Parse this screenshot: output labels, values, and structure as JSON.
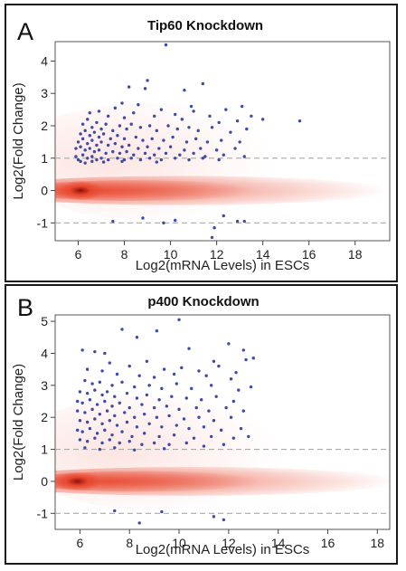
{
  "chart_data": [
    {
      "type": "scatter",
      "panel_label": "A",
      "title": "Tip60 Knockdown",
      "xlabel": "Log2(mRNA Levels) in ESCs",
      "ylabel": "Log2(Fold Change)",
      "xlim": [
        5,
        19.5
      ],
      "ylim": [
        -1.55,
        4.6
      ],
      "xticks": [
        6,
        8,
        10,
        12,
        14,
        16,
        18
      ],
      "yticks": [
        -1,
        0,
        1,
        2,
        3,
        4
      ],
      "reference_lines": [
        1,
        -1
      ],
      "colors": {
        "points": "#3d4aa8",
        "density": "#e8452c",
        "density_core": "#8b0f0a",
        "reference_line": "#aaaaaa"
      },
      "density": {
        "description": "bulk of genes near fold change 0, densest around x = 6.1"
      },
      "points": [
        [
          9.8,
          4.5
        ],
        [
          9.0,
          3.4
        ],
        [
          8.2,
          3.2
        ],
        [
          10.6,
          3.1
        ],
        [
          11.4,
          3.3
        ],
        [
          8.9,
          3.15
        ],
        [
          7.9,
          2.7
        ],
        [
          8.6,
          2.65
        ],
        [
          10.9,
          2.6
        ],
        [
          13.1,
          2.6
        ],
        [
          12.4,
          2.5
        ],
        [
          13.5,
          2.3
        ],
        [
          14.0,
          2.2
        ],
        [
          15.6,
          2.15
        ],
        [
          6.5,
          2.4
        ],
        [
          6.9,
          2.45
        ],
        [
          7.3,
          2.3
        ],
        [
          7.6,
          2.55
        ],
        [
          8.0,
          2.25
        ],
        [
          8.4,
          2.4
        ],
        [
          9.3,
          2.3
        ],
        [
          9.6,
          2.5
        ],
        [
          10.2,
          2.35
        ],
        [
          10.5,
          2.2
        ],
        [
          11.0,
          2.45
        ],
        [
          11.7,
          2.3
        ],
        [
          12.1,
          2.1
        ],
        [
          12.9,
          2.15
        ],
        [
          6.2,
          2.05
        ],
        [
          6.4,
          2.2
        ],
        [
          6.6,
          1.95
        ],
        [
          6.8,
          2.1
        ],
        [
          7.0,
          1.9
        ],
        [
          7.2,
          2.05
        ],
        [
          7.5,
          1.85
        ],
        [
          7.8,
          2.0
        ],
        [
          8.1,
          1.9
        ],
        [
          8.3,
          2.05
        ],
        [
          8.7,
          1.95
        ],
        [
          9.1,
          2.0
        ],
        [
          9.4,
          1.85
        ],
        [
          9.9,
          2.0
        ],
        [
          10.3,
          1.9
        ],
        [
          10.8,
          1.95
        ],
        [
          11.2,
          1.85
        ],
        [
          11.8,
          1.95
        ],
        [
          12.6,
          1.8
        ],
        [
          13.3,
          1.9
        ],
        [
          6.1,
          1.75
        ],
        [
          6.3,
          1.85
        ],
        [
          6.5,
          1.7
        ],
        [
          6.7,
          1.8
        ],
        [
          6.9,
          1.65
        ],
        [
          7.1,
          1.75
        ],
        [
          7.4,
          1.6
        ],
        [
          7.7,
          1.7
        ],
        [
          8.0,
          1.6
        ],
        [
          8.5,
          1.65
        ],
        [
          8.8,
          1.55
        ],
        [
          9.2,
          1.6
        ],
        [
          9.7,
          1.55
        ],
        [
          10.1,
          1.65
        ],
        [
          10.7,
          1.5
        ],
        [
          11.1,
          1.6
        ],
        [
          11.6,
          1.5
        ],
        [
          12.2,
          1.55
        ],
        [
          13.0,
          1.5
        ],
        [
          6.0,
          1.5
        ],
        [
          6.2,
          1.6
        ],
        [
          6.4,
          1.45
        ],
        [
          6.6,
          1.55
        ],
        [
          6.8,
          1.4
        ],
        [
          7.0,
          1.5
        ],
        [
          7.3,
          1.4
        ],
        [
          7.6,
          1.45
        ],
        [
          7.9,
          1.35
        ],
        [
          8.2,
          1.4
        ],
        [
          8.6,
          1.3
        ],
        [
          9.0,
          1.35
        ],
        [
          9.5,
          1.3
        ],
        [
          10.0,
          1.35
        ],
        [
          10.6,
          1.25
        ],
        [
          11.3,
          1.3
        ],
        [
          12.0,
          1.25
        ],
        [
          12.8,
          1.3
        ],
        [
          5.9,
          1.3
        ],
        [
          6.1,
          1.35
        ],
        [
          6.3,
          1.25
        ],
        [
          6.5,
          1.3
        ],
        [
          6.7,
          1.2
        ],
        [
          6.9,
          1.25
        ],
        [
          7.2,
          1.15
        ],
        [
          7.5,
          1.2
        ],
        [
          7.8,
          1.15
        ],
        [
          8.1,
          1.2
        ],
        [
          8.4,
          1.1
        ],
        [
          8.9,
          1.15
        ],
        [
          9.3,
          1.1
        ],
        [
          9.8,
          1.15
        ],
        [
          10.4,
          1.1
        ],
        [
          11.0,
          1.15
        ],
        [
          11.5,
          1.05
        ],
        [
          12.3,
          1.1
        ],
        [
          13.2,
          1.05
        ],
        [
          5.9,
          1.05
        ],
        [
          6.0,
          0.95
        ],
        [
          6.2,
          1.1
        ],
        [
          6.4,
          1.0
        ],
        [
          6.6,
          1.05
        ],
        [
          6.8,
          0.95
        ],
        [
          7.0,
          1.0
        ],
        [
          7.3,
          0.95
        ],
        [
          7.7,
          1.0
        ],
        [
          8.0,
          0.95
        ],
        [
          8.3,
          1.0
        ],
        [
          8.7,
          0.95
        ],
        [
          9.1,
          1.0
        ],
        [
          9.6,
          0.95
        ],
        [
          10.2,
          1.0
        ],
        [
          10.8,
          0.95
        ],
        [
          11.4,
          1.0
        ],
        [
          12.1,
          0.95
        ],
        [
          6.1,
          0.9
        ],
        [
          6.3,
          0.85
        ],
        [
          6.6,
          0.9
        ],
        [
          7.1,
          0.88
        ],
        [
          7.9,
          0.9
        ],
        [
          9.4,
          0.88
        ],
        [
          12.3,
          -0.78
        ],
        [
          11.9,
          -1.15
        ],
        [
          13.2,
          -0.95
        ],
        [
          7.5,
          -0.95
        ],
        [
          8.8,
          -0.85
        ],
        [
          10.2,
          -0.92
        ],
        [
          9.7,
          -1.0
        ],
        [
          12.9,
          -0.95
        ],
        [
          11.8,
          -1.45
        ]
      ]
    },
    {
      "type": "scatter",
      "panel_label": "B",
      "title": "p400 Knockdown",
      "xlabel": "Log2(mRNA Levels) in ESCs",
      "ylabel": "Log2(Fold Change)",
      "xlim": [
        5,
        18.5
      ],
      "ylim": [
        -1.5,
        5.2
      ],
      "xticks": [
        6,
        8,
        10,
        12,
        14,
        16,
        18
      ],
      "yticks": [
        -1,
        0,
        1,
        2,
        3,
        4,
        5
      ],
      "reference_lines": [
        1,
        -1
      ],
      "colors": {
        "points": "#3d4aa8",
        "density": "#e8452c",
        "density_core": "#8b0f0a",
        "reference_line": "#aaaaaa"
      },
      "density": {
        "description": "bulk of genes near fold change 0, densest around x = 5.9"
      },
      "points": [
        [
          10.0,
          5.05
        ],
        [
          7.7,
          4.75
        ],
        [
          9.1,
          4.7
        ],
        [
          8.3,
          4.5
        ],
        [
          6.6,
          4.05
        ],
        [
          6.1,
          4.1
        ],
        [
          7.0,
          4.0
        ],
        [
          10.4,
          4.15
        ],
        [
          12.0,
          4.3
        ],
        [
          12.6,
          4.1
        ],
        [
          13.0,
          3.85
        ],
        [
          12.7,
          3.8
        ],
        [
          11.4,
          3.75
        ],
        [
          7.2,
          3.7
        ],
        [
          8.0,
          3.6
        ],
        [
          8.7,
          3.75
        ],
        [
          9.4,
          3.5
        ],
        [
          10.1,
          3.55
        ],
        [
          10.8,
          3.45
        ],
        [
          11.6,
          3.6
        ],
        [
          12.3,
          3.4
        ],
        [
          6.3,
          3.5
        ],
        [
          6.9,
          3.45
        ],
        [
          7.5,
          3.35
        ],
        [
          8.4,
          3.3
        ],
        [
          9.0,
          3.25
        ],
        [
          9.8,
          3.35
        ],
        [
          11.1,
          3.3
        ],
        [
          12.1,
          3.2
        ],
        [
          6.2,
          3.15
        ],
        [
          6.5,
          3.05
        ],
        [
          6.8,
          3.1
        ],
        [
          7.3,
          3.0
        ],
        [
          7.7,
          3.1
        ],
        [
          8.2,
          2.95
        ],
        [
          8.8,
          3.0
        ],
        [
          9.3,
          2.9
        ],
        [
          9.9,
          3.05
        ],
        [
          10.5,
          2.9
        ],
        [
          11.3,
          3.0
        ],
        [
          12.4,
          2.85
        ],
        [
          12.9,
          2.95
        ],
        [
          6.0,
          2.8
        ],
        [
          6.3,
          2.75
        ],
        [
          6.6,
          2.85
        ],
        [
          6.9,
          2.7
        ],
        [
          7.1,
          2.8
        ],
        [
          7.4,
          2.65
        ],
        [
          7.9,
          2.75
        ],
        [
          8.3,
          2.6
        ],
        [
          8.7,
          2.7
        ],
        [
          9.2,
          2.55
        ],
        [
          9.7,
          2.65
        ],
        [
          10.3,
          2.6
        ],
        [
          10.9,
          2.55
        ],
        [
          11.5,
          2.65
        ],
        [
          12.2,
          2.5
        ],
        [
          5.9,
          2.5
        ],
        [
          6.1,
          2.45
        ],
        [
          6.4,
          2.55
        ],
        [
          6.7,
          2.4
        ],
        [
          7.0,
          2.5
        ],
        [
          7.3,
          2.35
        ],
        [
          7.6,
          2.45
        ],
        [
          8.0,
          2.3
        ],
        [
          8.5,
          2.4
        ],
        [
          9.0,
          2.3
        ],
        [
          9.5,
          2.35
        ],
        [
          10.0,
          2.25
        ],
        [
          10.7,
          2.3
        ],
        [
          11.2,
          2.2
        ],
        [
          11.9,
          2.3
        ],
        [
          12.6,
          2.2
        ],
        [
          5.9,
          2.2
        ],
        [
          6.2,
          2.15
        ],
        [
          6.5,
          2.25
        ],
        [
          6.8,
          2.1
        ],
        [
          7.1,
          2.2
        ],
        [
          7.4,
          2.05
        ],
        [
          7.8,
          2.15
        ],
        [
          8.2,
          2.0
        ],
        [
          8.6,
          2.1
        ],
        [
          9.1,
          2.0
        ],
        [
          9.6,
          2.05
        ],
        [
          10.2,
          1.95
        ],
        [
          10.8,
          2.0
        ],
        [
          11.4,
          1.9
        ],
        [
          12.1,
          2.0
        ],
        [
          6.0,
          1.9
        ],
        [
          6.3,
          1.85
        ],
        [
          6.6,
          1.95
        ],
        [
          6.9,
          1.8
        ],
        [
          7.2,
          1.9
        ],
        [
          7.5,
          1.75
        ],
        [
          7.9,
          1.85
        ],
        [
          8.3,
          1.7
        ],
        [
          8.8,
          1.8
        ],
        [
          9.3,
          1.7
        ],
        [
          9.9,
          1.75
        ],
        [
          10.4,
          1.65
        ],
        [
          11.0,
          1.7
        ],
        [
          11.7,
          1.6
        ],
        [
          12.5,
          1.65
        ],
        [
          5.9,
          1.6
        ],
        [
          6.1,
          1.55
        ],
        [
          6.4,
          1.65
        ],
        [
          6.7,
          1.5
        ],
        [
          7.0,
          1.6
        ],
        [
          7.3,
          1.45
        ],
        [
          7.7,
          1.55
        ],
        [
          8.1,
          1.4
        ],
        [
          8.6,
          1.5
        ],
        [
          9.2,
          1.4
        ],
        [
          9.8,
          1.45
        ],
        [
          10.6,
          1.35
        ],
        [
          11.3,
          1.4
        ],
        [
          12.2,
          1.35
        ],
        [
          12.8,
          1.4
        ],
        [
          6.0,
          1.3
        ],
        [
          6.3,
          1.25
        ],
        [
          6.6,
          1.35
        ],
        [
          6.9,
          1.2
        ],
        [
          7.2,
          1.3
        ],
        [
          7.6,
          1.2
        ],
        [
          8.0,
          1.25
        ],
        [
          8.5,
          1.15
        ],
        [
          9.0,
          1.2
        ],
        [
          9.6,
          1.15
        ],
        [
          10.3,
          1.2
        ],
        [
          11.0,
          1.1
        ],
        [
          11.8,
          1.15
        ],
        [
          6.2,
          1.05
        ],
        [
          6.8,
          1.0
        ],
        [
          7.4,
          1.05
        ],
        [
          8.2,
          0.98
        ],
        [
          9.4,
          1.02
        ],
        [
          8.4,
          -1.3
        ],
        [
          11.4,
          -1.1
        ],
        [
          11.8,
          -1.2
        ],
        [
          9.3,
          -0.95
        ],
        [
          7.4,
          -0.92
        ]
      ]
    }
  ]
}
